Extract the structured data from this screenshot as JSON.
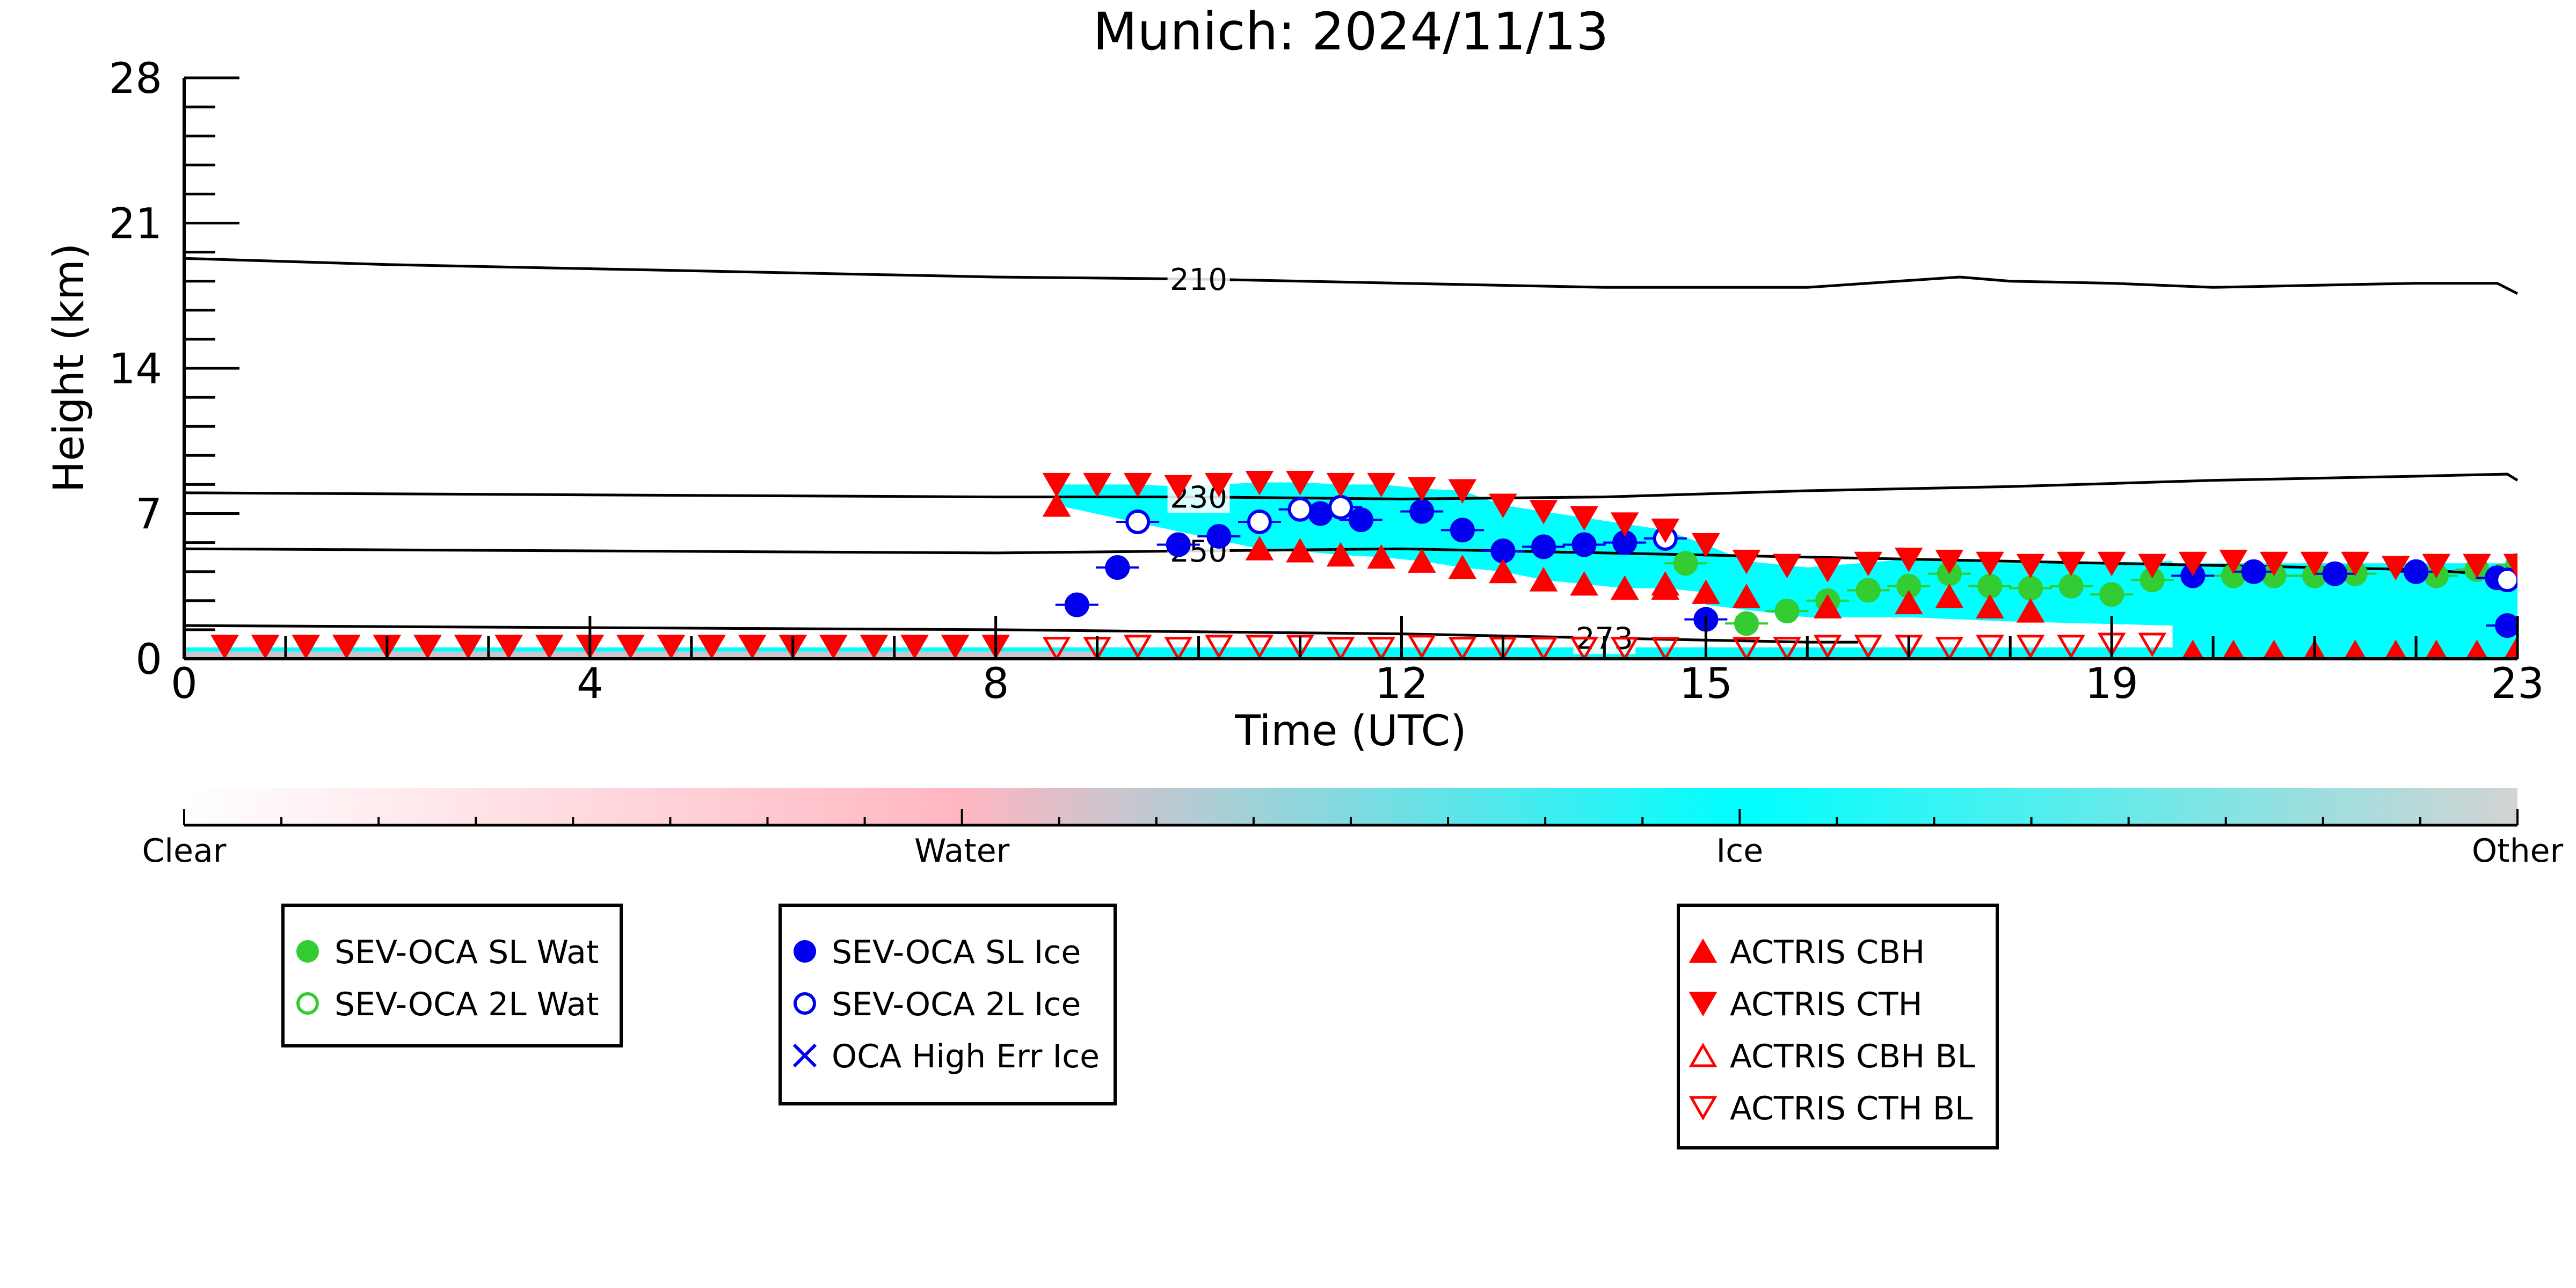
{
  "chart_data": {
    "type": "scatter",
    "title": "Munich: 2024/11/13",
    "xlabel": "Time (UTC)",
    "ylabel": "Height (km)",
    "xlim": [
      0,
      23
    ],
    "ylim": [
      0,
      28
    ],
    "x_ticks": [
      0,
      4,
      8,
      12,
      15,
      19,
      23
    ],
    "y_ticks": [
      0,
      7,
      14,
      21,
      28
    ],
    "colors": {
      "water": "#ffb6c1",
      "ice": "#00ffff",
      "other": "#d3d3d3",
      "sl_wat": "#33cc33",
      "sl_ice": "#0000ee",
      "actris": "#ff0000"
    },
    "colorbar": {
      "labels": [
        "Clear",
        "Water",
        "Ice",
        "Other"
      ],
      "positions": [
        0,
        8,
        16,
        24
      ]
    },
    "contours": [
      {
        "label": "210",
        "x": [
          0,
          2,
          4,
          6,
          8,
          10,
          12,
          14,
          16,
          17.5,
          18,
          19,
          20,
          21,
          22,
          22.8,
          23
        ],
        "y": [
          19.3,
          19.0,
          18.8,
          18.6,
          18.4,
          18.3,
          18.1,
          17.9,
          17.9,
          18.4,
          18.2,
          18.1,
          17.9,
          18.0,
          18.1,
          18.1,
          17.6
        ]
      },
      {
        "label": "230",
        "x": [
          0,
          4,
          8,
          9,
          10,
          12,
          14,
          16,
          18,
          20,
          22,
          22.9,
          23
        ],
        "y": [
          8.0,
          7.9,
          7.8,
          7.8,
          7.8,
          7.7,
          7.8,
          8.1,
          8.3,
          8.6,
          8.8,
          8.9,
          8.6
        ]
      },
      {
        "label": "250",
        "x": [
          0,
          4,
          8,
          10,
          12,
          14,
          16,
          18,
          20,
          22,
          23
        ],
        "y": [
          5.3,
          5.2,
          5.1,
          5.2,
          5.3,
          5.1,
          4.9,
          4.7,
          4.5,
          4.3,
          4.0
        ]
      },
      {
        "label": "273",
        "x": [
          0,
          4,
          8,
          10,
          12,
          13,
          14,
          15,
          16,
          16.5
        ],
        "y": [
          1.6,
          1.5,
          1.4,
          1.3,
          1.2,
          1.1,
          1.0,
          0.9,
          0.8,
          0.8
        ]
      }
    ],
    "series": [
      {
        "name": "SEV-OCA SL Wat",
        "x": [
          14.8,
          15.4,
          15.8,
          16.2,
          16.6,
          17.0,
          17.4,
          17.8,
          18.2,
          18.6,
          19.0,
          19.4,
          20.2,
          20.6,
          21.0,
          21.4,
          22.2,
          22.6,
          23.0
        ],
        "y": [
          4.6,
          1.7,
          2.3,
          2.8,
          3.3,
          3.5,
          4.1,
          3.5,
          3.4,
          3.5,
          3.1,
          3.8,
          4.0,
          4.0,
          4.0,
          4.1,
          4.0,
          4.3,
          4.5
        ]
      },
      {
        "name": "SEV-OCA 2L Wat",
        "x": [],
        "y": []
      },
      {
        "name": "SEV-OCA SL Ice",
        "x": [
          8.8,
          9.2,
          9.8,
          10.2,
          11.2,
          11.6,
          12.2,
          12.6,
          13.0,
          13.4,
          13.8,
          14.2,
          15.0,
          19.8,
          20.4,
          21.2,
          22.0,
          22.8,
          22.9
        ],
        "y": [
          2.6,
          4.4,
          5.5,
          5.9,
          7.0,
          6.7,
          7.1,
          6.2,
          5.2,
          5.4,
          5.5,
          5.6,
          1.9,
          4.0,
          4.2,
          4.1,
          4.2,
          3.9,
          1.6
        ]
      },
      {
        "name": "SEV-OCA 2L Ice",
        "x": [
          9.4,
          10.6,
          11.0,
          11.4,
          14.6,
          22.9
        ],
        "y": [
          6.6,
          6.6,
          7.2,
          7.3,
          5.8,
          3.8
        ]
      },
      {
        "name": "OCA High Err Ice",
        "x": [],
        "y": []
      },
      {
        "name": "ACTRIS CBH",
        "x": [
          8.6,
          10.6,
          11.0,
          11.4,
          11.8,
          12.2,
          12.6,
          13.0,
          13.4,
          13.8,
          14.2,
          14.6,
          15.0,
          15.4,
          16.2,
          17.0,
          17.4,
          17.8,
          18.2,
          19.8,
          20.2,
          20.6,
          21.0,
          21.4,
          21.8,
          22.2,
          22.6,
          23.0
        ],
        "y": [
          7.4,
          5.3,
          5.2,
          5.0,
          4.9,
          4.7,
          4.4,
          4.2,
          3.8,
          3.6,
          3.4,
          3.4,
          3.2,
          3.0,
          2.5,
          2.7,
          3.0,
          2.5,
          2.3,
          0.3,
          0.3,
          0.3,
          0.3,
          0.3,
          0.3,
          0.3,
          0.3,
          0.5
        ]
      },
      {
        "name": "ACTRIS CTH",
        "x": [
          8.6,
          9.0,
          9.4,
          9.8,
          10.2,
          10.6,
          11.0,
          11.4,
          11.8,
          12.2,
          12.6,
          13.0,
          13.4,
          13.8,
          14.2,
          14.6,
          15.0,
          15.4,
          15.8,
          16.2,
          16.6,
          17.0,
          17.4,
          17.8,
          18.2,
          18.6,
          19.0,
          19.4,
          19.8,
          20.2,
          20.6,
          21.0,
          21.4,
          21.8,
          22.2,
          22.6,
          23.0,
          0.4,
          0.8,
          1.2,
          1.6,
          2.0,
          2.4,
          2.8,
          3.2,
          3.6,
          4.0,
          4.4,
          4.8,
          5.2,
          5.6,
          6.0,
          6.4,
          6.8,
          7.2,
          7.6,
          8.0
        ],
        "y": [
          8.4,
          8.4,
          8.4,
          8.3,
          8.4,
          8.5,
          8.5,
          8.4,
          8.4,
          8.2,
          8.1,
          7.4,
          7.1,
          6.8,
          6.5,
          6.2,
          5.5,
          4.7,
          4.5,
          4.3,
          4.6,
          4.8,
          4.7,
          4.6,
          4.5,
          4.6,
          4.6,
          4.5,
          4.6,
          4.7,
          4.6,
          4.6,
          4.6,
          4.4,
          4.5,
          4.5,
          4.5,
          0.6,
          0.6,
          0.6,
          0.6,
          0.6,
          0.6,
          0.6,
          0.6,
          0.6,
          0.6,
          0.6,
          0.6,
          0.6,
          0.6,
          0.6,
          0.6,
          0.6,
          0.6,
          0.6,
          0.6
        ]
      },
      {
        "name": "ACTRIS CBH BL",
        "x": [
          14.6
        ],
        "y": [
          3.6
        ]
      },
      {
        "name": "ACTRIS CTH BL",
        "x": [
          8.6,
          9.0,
          9.4,
          9.8,
          10.2,
          10.6,
          11.0,
          11.4,
          11.8,
          12.2,
          12.6,
          13.0,
          13.4,
          13.8,
          14.2,
          14.6,
          15.4,
          15.8,
          16.2,
          16.6,
          17.0,
          17.4,
          17.8,
          18.2,
          18.6,
          19.0,
          19.4
        ],
        "y": [
          0.5,
          0.5,
          0.6,
          0.5,
          0.6,
          0.6,
          0.6,
          0.5,
          0.5,
          0.6,
          0.5,
          0.5,
          0.5,
          0.5,
          0.5,
          0.5,
          0.5,
          0.5,
          0.6,
          0.6,
          0.6,
          0.5,
          0.6,
          0.6,
          0.6,
          0.7,
          0.7
        ]
      }
    ],
    "legend_groups": [
      [
        "SEV-OCA SL Wat",
        "SEV-OCA 2L Wat"
      ],
      [
        "SEV-OCA SL Ice",
        "SEV-OCA 2L Ice",
        "OCA High Err Ice"
      ],
      [
        "ACTRIS CBH",
        "ACTRIS CTH",
        "ACTRIS CBH BL",
        "ACTRIS CTH BL"
      ]
    ],
    "legend_placement": "bottom",
    "grid": false
  }
}
